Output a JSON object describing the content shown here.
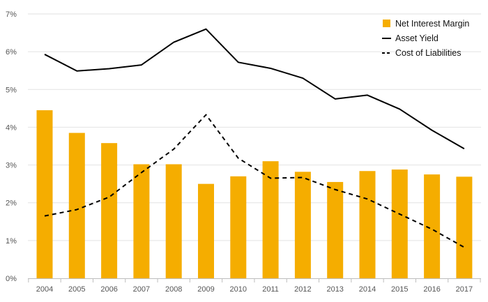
{
  "chart_data": {
    "type": "bar",
    "categories": [
      "2004",
      "2005",
      "2006",
      "2007",
      "2008",
      "2009",
      "2010",
      "2011",
      "2012",
      "2013",
      "2014",
      "2015",
      "2016",
      "2017"
    ],
    "series": [
      {
        "name": "Net Interest Margin",
        "kind": "bar",
        "color": "#f5ad00",
        "values": [
          4.45,
          3.85,
          3.58,
          3.02,
          3.02,
          2.5,
          2.7,
          3.1,
          2.82,
          2.55,
          2.84,
          2.88,
          2.75,
          2.69
        ]
      },
      {
        "name": "Asset Yield",
        "kind": "line",
        "style": "solid",
        "color": "#000000",
        "values": [
          5.93,
          5.49,
          5.55,
          5.65,
          6.25,
          6.6,
          5.72,
          5.56,
          5.3,
          4.75,
          4.85,
          4.48,
          3.92,
          3.43
        ]
      },
      {
        "name": "Cost of Liabilities",
        "kind": "line",
        "style": "dashed",
        "color": "#000000",
        "values": [
          1.65,
          1.82,
          2.15,
          2.8,
          3.42,
          4.33,
          3.18,
          2.65,
          2.67,
          2.35,
          2.1,
          1.7,
          1.3,
          0.82
        ]
      }
    ],
    "y_ticks": [
      "0%",
      "1%",
      "2%",
      "3%",
      "4%",
      "5%",
      "6%",
      "7%"
    ],
    "ylim": [
      0,
      7
    ],
    "title": "",
    "xlabel": "",
    "ylabel": "",
    "grid": true,
    "legend_position": "top-right"
  }
}
